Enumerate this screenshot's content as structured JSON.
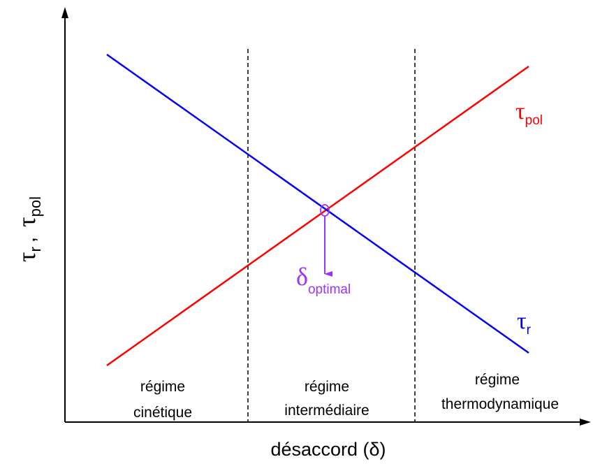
{
  "y_label": {
    "symbol_1": "τ",
    "subscript_1": "r",
    "separator": ",",
    "symbol_2": "τ",
    "subscript_2": "pol"
  },
  "x_label": "désaccord (δ)",
  "curves": [
    {
      "symbol": "τ",
      "subscript": "pol"
    },
    {
      "symbol": "τ",
      "subscript": "r"
    }
  ],
  "optimum": {
    "symbol": "δ",
    "subscript": "optimal"
  },
  "regions": [
    {
      "line_1": "régime",
      "line_2": "cinétique"
    },
    {
      "line_1": "régime",
      "line_2": "intermédiaire"
    },
    {
      "line_1": "régime",
      "line_2": "thermodynamique"
    }
  ]
}
